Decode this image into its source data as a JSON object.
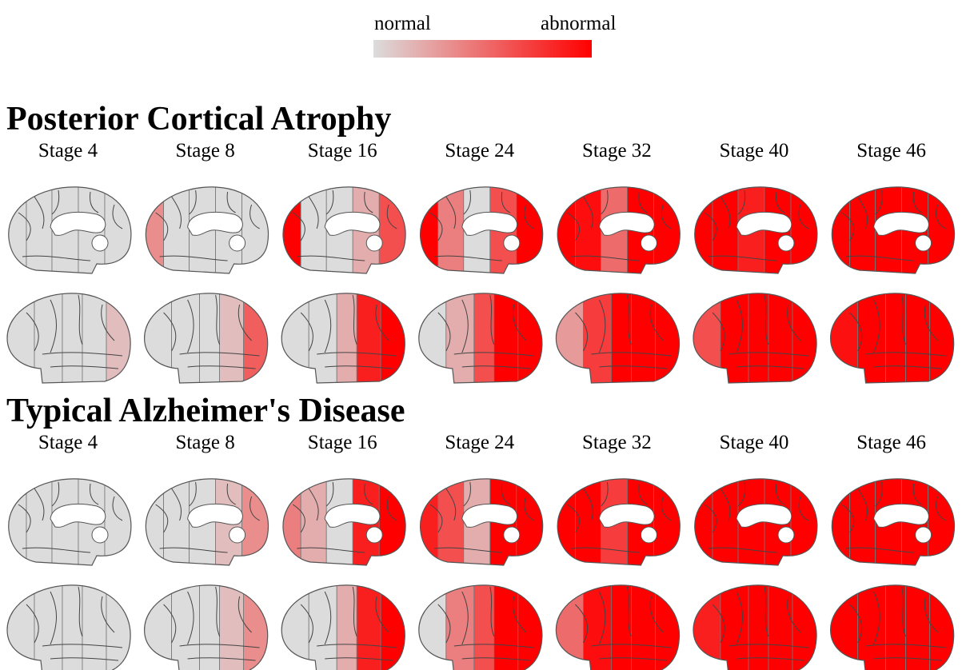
{
  "legend": {
    "low": "normal",
    "high": "abnormal"
  },
  "sections": [
    {
      "title": "Posterior Cortical Atrophy",
      "stages": [
        "Stage 4",
        "Stage 8",
        "Stage 16",
        "Stage 24",
        "Stage 32",
        "Stage 40",
        "Stage 46"
      ]
    },
    {
      "title": "Typical Alzheimer's Disease",
      "stages": [
        "Stage 4",
        "Stage 8",
        "Stage 16",
        "Stage 24",
        "Stage 32",
        "Stage 40",
        "Stage 46"
      ]
    }
  ]
}
